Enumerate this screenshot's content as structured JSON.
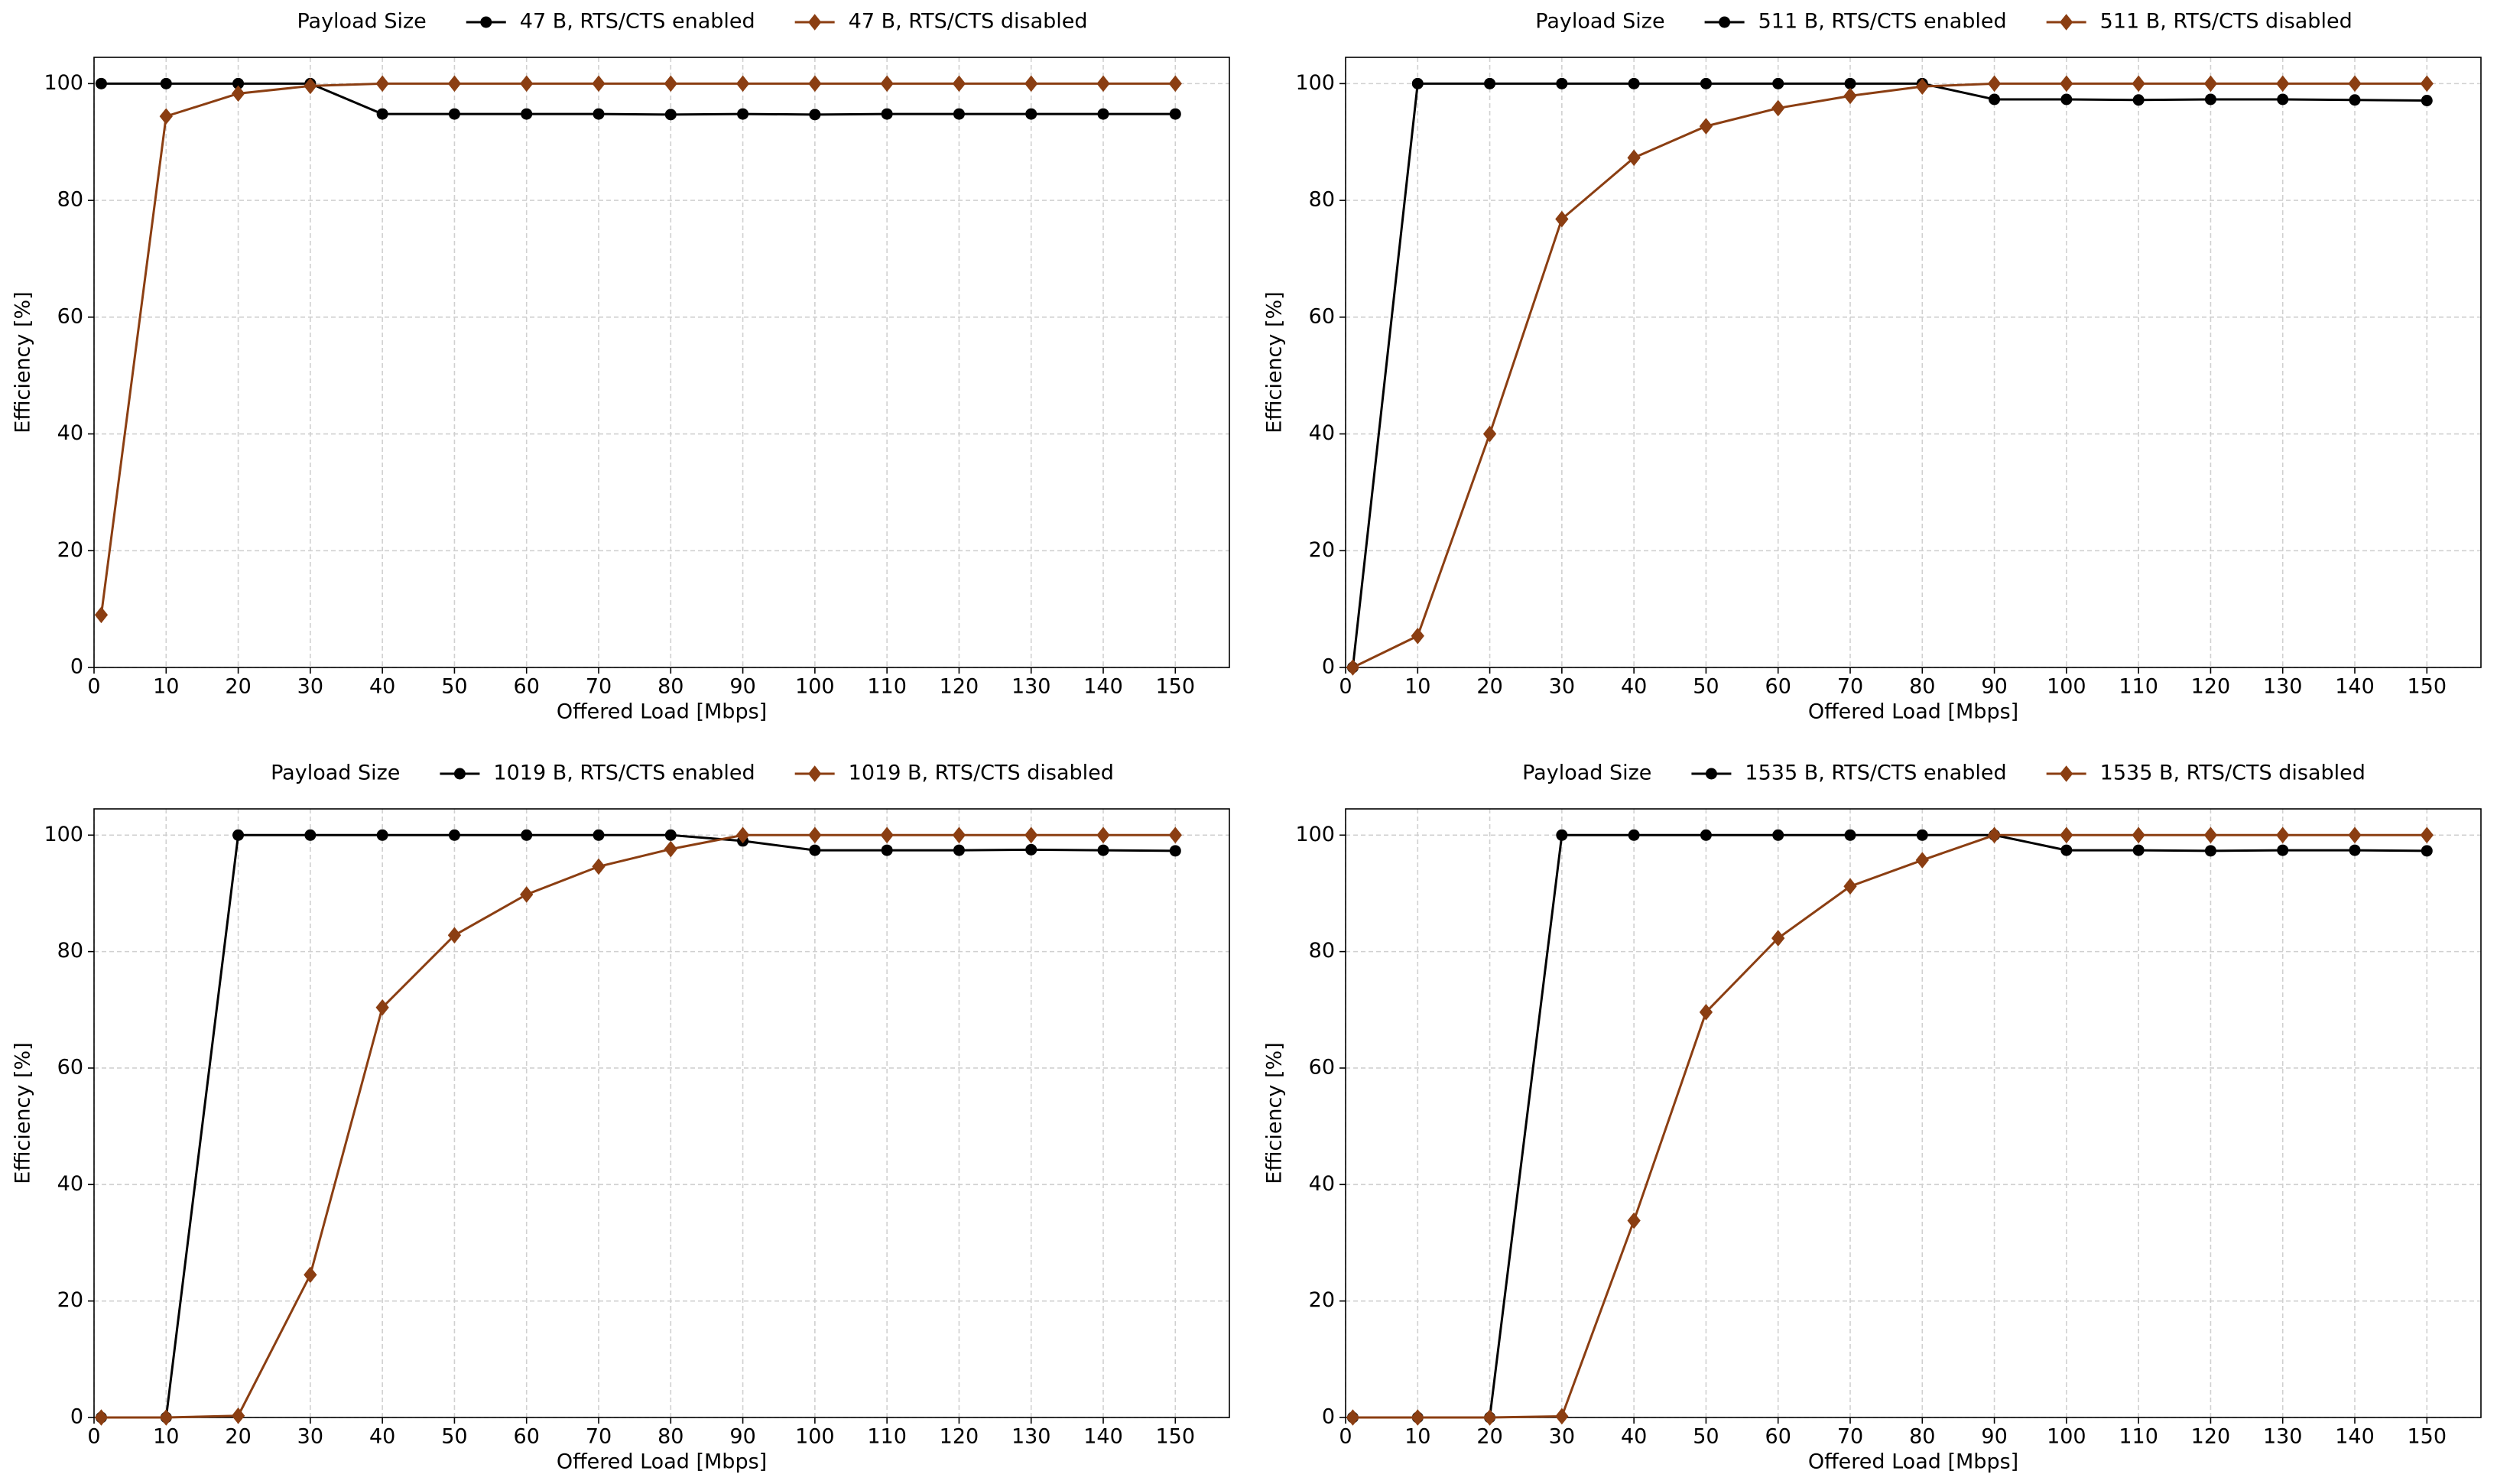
{
  "chart_data": [
    {
      "type": "line",
      "legend_title": "Payload Size",
      "xlabel": "Offered Load [Mbps]",
      "ylabel": "Efficiency [%]",
      "x": [
        1,
        10,
        20,
        30,
        40,
        50,
        60,
        70,
        80,
        90,
        100,
        110,
        120,
        130,
        140,
        150
      ],
      "xlim": [
        0,
        157.5
      ],
      "xticks": [
        0,
        10,
        20,
        30,
        40,
        50,
        60,
        70,
        80,
        90,
        100,
        110,
        120,
        130,
        140,
        150
      ],
      "ylim": [
        0,
        104.5
      ],
      "yticks": [
        0,
        20,
        40,
        60,
        80,
        100
      ],
      "grid": true,
      "series": [
        {
          "name": "47 B, RTS/CTS enabled",
          "color": "#000000",
          "marker": "circle",
          "values": [
            100,
            100,
            100,
            100,
            94.8,
            94.8,
            94.8,
            94.8,
            94.7,
            94.8,
            94.7,
            94.8,
            94.8,
            94.8,
            94.8,
            94.8
          ]
        },
        {
          "name": "47 B, RTS/CTS disabled",
          "color": "#8b3e12",
          "marker": "diamond",
          "values": [
            9,
            94.4,
            98.3,
            99.6,
            100,
            100,
            100,
            100,
            100,
            100,
            100,
            100,
            100,
            100,
            100,
            100
          ]
        }
      ]
    },
    {
      "type": "line",
      "legend_title": "Payload Size",
      "xlabel": "Offered Load [Mbps]",
      "ylabel": "Efficiency [%]",
      "x": [
        1,
        10,
        20,
        30,
        40,
        50,
        60,
        70,
        80,
        90,
        100,
        110,
        120,
        130,
        140,
        150
      ],
      "xlim": [
        0,
        157.5
      ],
      "xticks": [
        0,
        10,
        20,
        30,
        40,
        50,
        60,
        70,
        80,
        90,
        100,
        110,
        120,
        130,
        140,
        150
      ],
      "ylim": [
        0,
        104.5
      ],
      "yticks": [
        0,
        20,
        40,
        60,
        80,
        100
      ],
      "grid": true,
      "series": [
        {
          "name": "511 B, RTS/CTS enabled",
          "color": "#000000",
          "marker": "circle",
          "values": [
            0,
            100,
            100,
            100,
            100,
            100,
            100,
            100,
            100,
            97.3,
            97.3,
            97.2,
            97.3,
            97.3,
            97.2,
            97.1
          ]
        },
        {
          "name": "511 B, RTS/CTS disabled",
          "color": "#8b3e12",
          "marker": "diamond",
          "values": [
            0,
            5.4,
            40,
            76.8,
            87.3,
            92.7,
            95.8,
            97.9,
            99.5,
            100,
            100,
            100,
            100,
            100,
            100,
            100
          ]
        }
      ]
    },
    {
      "type": "line",
      "legend_title": "Payload Size",
      "xlabel": "Offered Load [Mbps]",
      "ylabel": "Efficiency [%]",
      "x": [
        1,
        10,
        20,
        30,
        40,
        50,
        60,
        70,
        80,
        90,
        100,
        110,
        120,
        130,
        140,
        150
      ],
      "xlim": [
        0,
        157.5
      ],
      "xticks": [
        0,
        10,
        20,
        30,
        40,
        50,
        60,
        70,
        80,
        90,
        100,
        110,
        120,
        130,
        140,
        150
      ],
      "ylim": [
        0,
        104.5
      ],
      "yticks": [
        0,
        20,
        40,
        60,
        80,
        100
      ],
      "grid": true,
      "series": [
        {
          "name": "1019 B, RTS/CTS enabled",
          "color": "#000000",
          "marker": "circle",
          "values": [
            0,
            0,
            100,
            100,
            100,
            100,
            100,
            100,
            100,
            99,
            97.4,
            97.4,
            97.4,
            97.5,
            97.4,
            97.3
          ]
        },
        {
          "name": "1019 B, RTS/CTS disabled",
          "color": "#8b3e12",
          "marker": "diamond",
          "values": [
            0,
            0,
            0.3,
            24.5,
            70.4,
            82.8,
            89.8,
            94.6,
            97.6,
            100,
            100,
            100,
            100,
            100,
            100,
            100
          ]
        }
      ]
    },
    {
      "type": "line",
      "legend_title": "Payload Size",
      "xlabel": "Offered Load [Mbps]",
      "ylabel": "Efficiency [%]",
      "x": [
        1,
        10,
        20,
        30,
        40,
        50,
        60,
        70,
        80,
        90,
        100,
        110,
        120,
        130,
        140,
        150
      ],
      "xlim": [
        0,
        157.5
      ],
      "xticks": [
        0,
        10,
        20,
        30,
        40,
        50,
        60,
        70,
        80,
        90,
        100,
        110,
        120,
        130,
        140,
        150
      ],
      "ylim": [
        0,
        104.5
      ],
      "yticks": [
        0,
        20,
        40,
        60,
        80,
        100
      ],
      "grid": true,
      "series": [
        {
          "name": "1535 B, RTS/CTS enabled",
          "color": "#000000",
          "marker": "circle",
          "values": [
            0,
            0,
            0,
            100,
            100,
            100,
            100,
            100,
            100,
            100,
            97.4,
            97.4,
            97.3,
            97.4,
            97.4,
            97.3
          ]
        },
        {
          "name": "1535 B, RTS/CTS disabled",
          "color": "#8b3e12",
          "marker": "diamond",
          "values": [
            0,
            0,
            0,
            0.2,
            33.8,
            69.6,
            82.3,
            91.2,
            95.7,
            100,
            100,
            100,
            100,
            100,
            100,
            100
          ]
        }
      ]
    }
  ]
}
